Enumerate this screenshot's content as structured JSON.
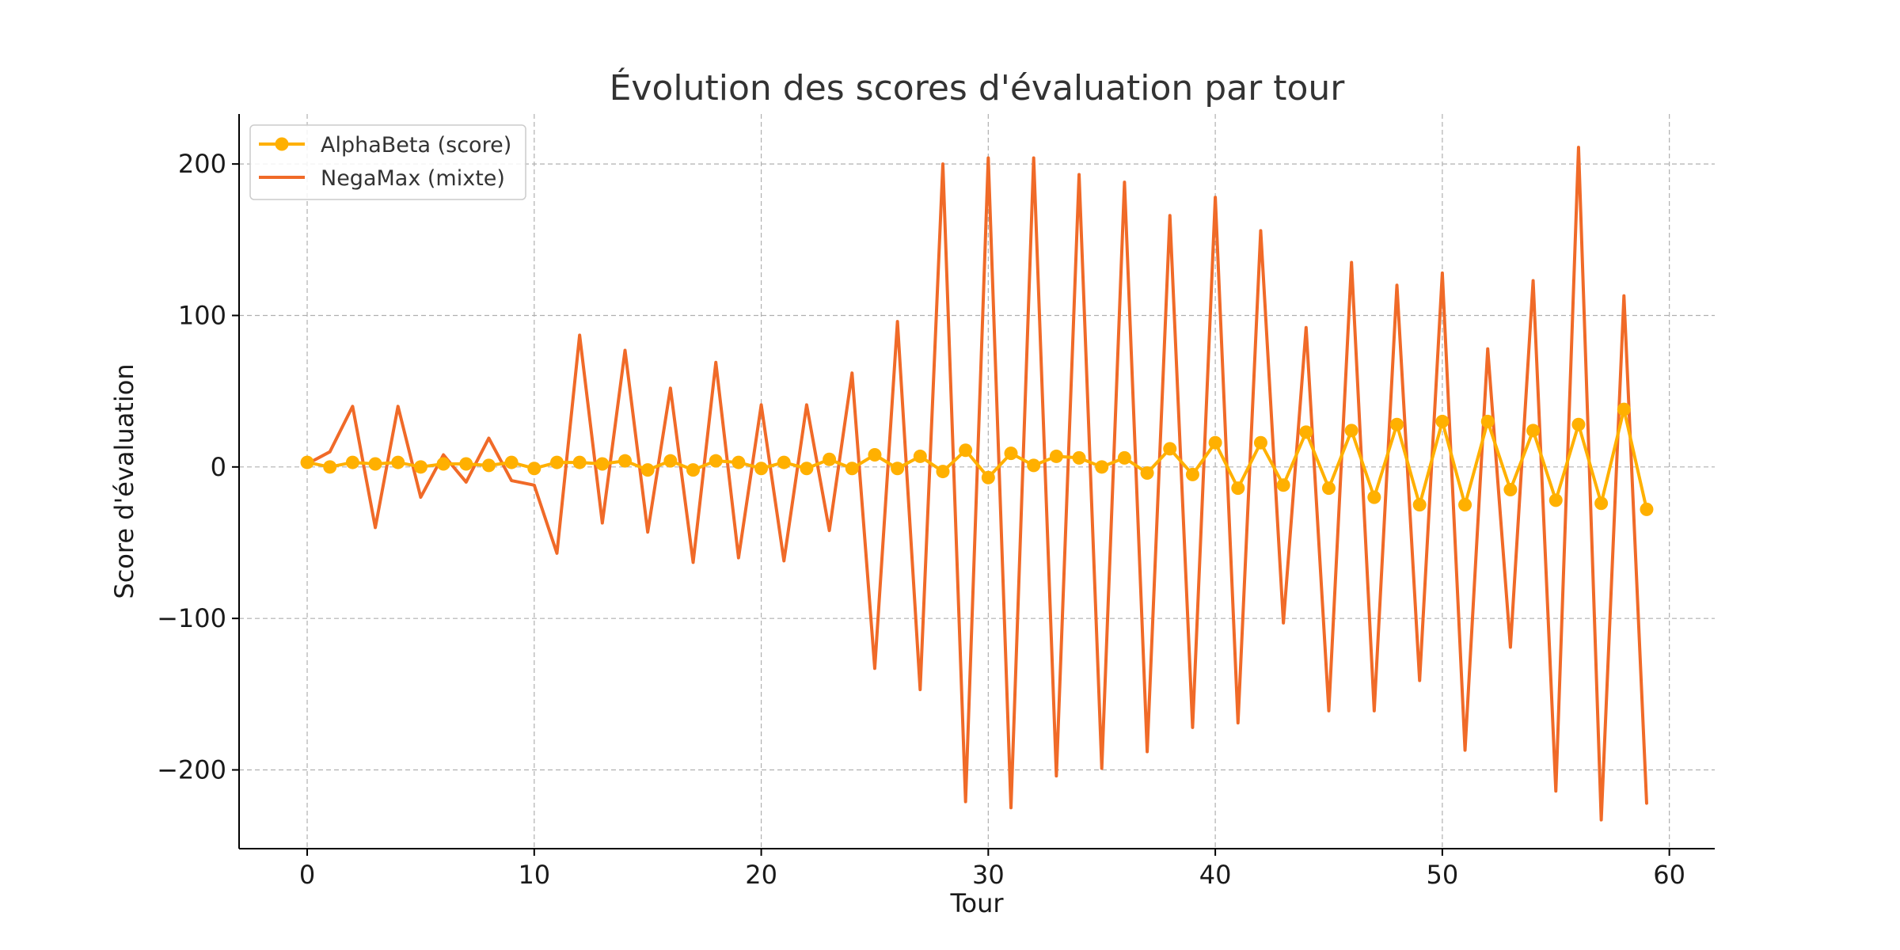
{
  "chart_data": {
    "type": "line",
    "title": "Évolution des scores d'évaluation par tour",
    "xlabel": "Tour",
    "ylabel": "Score d'évaluation",
    "xlim": [
      -3,
      62
    ],
    "ylim": [
      -252,
      233
    ],
    "xticks": [
      0,
      10,
      20,
      30,
      40,
      50,
      60
    ],
    "yticks": [
      -200,
      -100,
      0,
      100,
      200
    ],
    "grid": true,
    "legend_position": "top-left",
    "x": [
      0,
      1,
      2,
      3,
      4,
      5,
      6,
      7,
      8,
      9,
      10,
      11,
      12,
      13,
      14,
      15,
      16,
      17,
      18,
      19,
      20,
      21,
      22,
      23,
      24,
      25,
      26,
      27,
      28,
      29,
      30,
      31,
      32,
      33,
      34,
      35,
      36,
      37,
      38,
      39,
      40,
      41,
      42,
      43,
      44,
      45,
      46,
      47,
      48,
      49,
      50,
      51,
      52,
      53,
      54,
      55,
      56,
      57,
      58,
      59
    ],
    "series": [
      {
        "name": "AlphaBeta (score)",
        "color": "#FFB000",
        "marker": "circle",
        "values": [
          3,
          0,
          3,
          2,
          3,
          0,
          2,
          2,
          1,
          3,
          -1,
          3,
          3,
          2,
          4,
          -2,
          4,
          -2,
          4,
          3,
          -1,
          3,
          -1,
          5,
          -1,
          8,
          -1,
          7,
          -3,
          11,
          -7,
          9,
          1,
          7,
          6,
          0,
          6,
          -4,
          12,
          -5,
          16,
          -14,
          16,
          -12,
          23,
          -14,
          24,
          -20,
          28,
          -25,
          30,
          -25,
          30,
          -15,
          24,
          -22,
          28,
          -24,
          38,
          -28
        ]
      },
      {
        "name": "NegaMax (mixte)",
        "color": "#F06A28",
        "marker": "none",
        "values": [
          2,
          10,
          40,
          -40,
          40,
          -20,
          8,
          -10,
          19,
          -9,
          -12,
          -57,
          87,
          -37,
          77,
          -43,
          52,
          -63,
          69,
          -60,
          41,
          -62,
          41,
          -42,
          62,
          -133,
          96,
          -147,
          200,
          -221,
          204,
          -225,
          204,
          -204,
          193,
          -199,
          188,
          -188,
          166,
          -172,
          178,
          -169,
          156,
          -103,
          92,
          -161,
          135,
          -161,
          120,
          -141,
          128,
          -187,
          78,
          -119,
          123,
          -214,
          211,
          -233,
          113,
          -222
        ]
      }
    ]
  }
}
